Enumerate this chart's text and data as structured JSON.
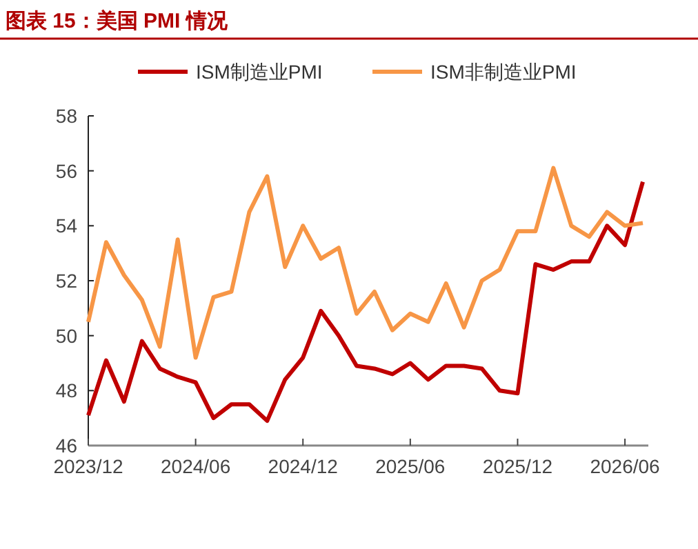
{
  "chart_data": {
    "type": "line",
    "title": "图表 15：美国 PMI 情况",
    "categories": [
      "2023/12",
      null,
      null,
      null,
      null,
      null,
      "2024/06",
      null,
      null,
      null,
      null,
      null,
      "2024/12",
      null,
      null,
      null,
      null,
      null,
      "2025/06",
      null,
      null,
      null,
      null,
      null,
      "2025/12",
      null,
      null,
      null,
      null,
      null,
      "2026/06",
      null
    ],
    "series": [
      {
        "name": "ISM制造业PMI",
        "color": "#c00000",
        "values": [
          47.1,
          49.1,
          47.6,
          49.8,
          48.8,
          48.5,
          48.3,
          47.0,
          47.5,
          47.5,
          46.9,
          48.4,
          49.2,
          50.9,
          50.0,
          48.9,
          48.8,
          48.6,
          49.0,
          48.4,
          48.9,
          48.9,
          48.8,
          48.0,
          47.9,
          52.6,
          52.4,
          52.7,
          52.7,
          54.0,
          53.3,
          55.6
        ]
      },
      {
        "name": "ISM非制造业PMI",
        "color": "#f79646",
        "values": [
          50.5,
          53.4,
          52.2,
          51.3,
          49.6,
          53.5,
          49.2,
          51.4,
          51.6,
          54.5,
          55.8,
          52.5,
          54.0,
          52.8,
          53.2,
          50.8,
          51.6,
          50.2,
          50.8,
          50.5,
          51.9,
          50.3,
          52.0,
          52.4,
          53.8,
          53.8,
          56.1,
          54.0,
          53.6,
          54.5,
          54.0,
          54.1
        ]
      }
    ],
    "ylim": [
      46,
      58
    ],
    "yticks": [
      46,
      48,
      50,
      52,
      54,
      56,
      58
    ],
    "grid": false,
    "legend": "top",
    "marker": "none",
    "line_style": "solid"
  }
}
